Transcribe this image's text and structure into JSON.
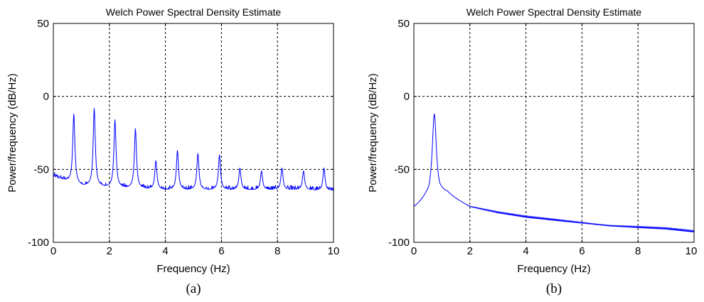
{
  "chart_data": [
    {
      "type": "line",
      "panel_label": "(a)",
      "title": "Welch Power Spectral Density Estimate",
      "xlabel": "Frequency (Hz)",
      "ylabel": "Power/frequency (dB/Hz)",
      "xlim": [
        0,
        10
      ],
      "ylim": [
        -100,
        50
      ],
      "xticks": [
        "0",
        "2",
        "4",
        "6",
        "8",
        "10"
      ],
      "yticks": [
        "50",
        "0",
        "-50",
        "-100"
      ],
      "grid": true,
      "line_color": "#0000ff",
      "baseline": [
        [
          0,
          -55
        ],
        [
          1,
          -61
        ],
        [
          2,
          -62
        ],
        [
          3,
          -63
        ],
        [
          4,
          -64
        ],
        [
          5,
          -64
        ],
        [
          6,
          -64
        ],
        [
          7,
          -64
        ],
        [
          8,
          -64
        ],
        [
          9,
          -64
        ],
        [
          10,
          -65
        ]
      ],
      "peaks": [
        {
          "x": 0.73,
          "y": -12
        },
        {
          "x": 1.46,
          "y": -8
        },
        {
          "x": 2.2,
          "y": -16
        },
        {
          "x": 2.93,
          "y": -22
        },
        {
          "x": 3.66,
          "y": -44
        },
        {
          "x": 4.43,
          "y": -37
        },
        {
          "x": 5.16,
          "y": -39
        },
        {
          "x": 5.93,
          "y": -40
        },
        {
          "x": 6.66,
          "y": -49
        },
        {
          "x": 7.43,
          "y": -51
        },
        {
          "x": 8.16,
          "y": -49
        },
        {
          "x": 8.93,
          "y": -51
        },
        {
          "x": 9.66,
          "y": -49
        }
      ]
    },
    {
      "type": "line",
      "panel_label": "(b)",
      "title": "Welch Power Spectral Density Estimate",
      "xlabel": "Frequency (Hz)",
      "ylabel": "Power/frequency (dB/Hz)",
      "xlim": [
        0,
        10
      ],
      "ylim": [
        -100,
        50
      ],
      "xticks": [
        "0",
        "2",
        "4",
        "6",
        "8",
        "10"
      ],
      "yticks": [
        "50",
        "0",
        "-50",
        "-100"
      ],
      "grid": true,
      "line_color": "#0000ff",
      "baseline": [
        [
          0,
          -77
        ],
        [
          0.4,
          -72
        ],
        [
          1.2,
          -68
        ],
        [
          2,
          -76
        ],
        [
          3,
          -80
        ],
        [
          4,
          -83
        ],
        [
          5,
          -85
        ],
        [
          6,
          -87
        ],
        [
          7,
          -89
        ],
        [
          8,
          -90
        ],
        [
          9,
          -91
        ],
        [
          10,
          -93
        ]
      ],
      "peaks": [
        {
          "x": 0.73,
          "y": -12
        }
      ]
    }
  ]
}
